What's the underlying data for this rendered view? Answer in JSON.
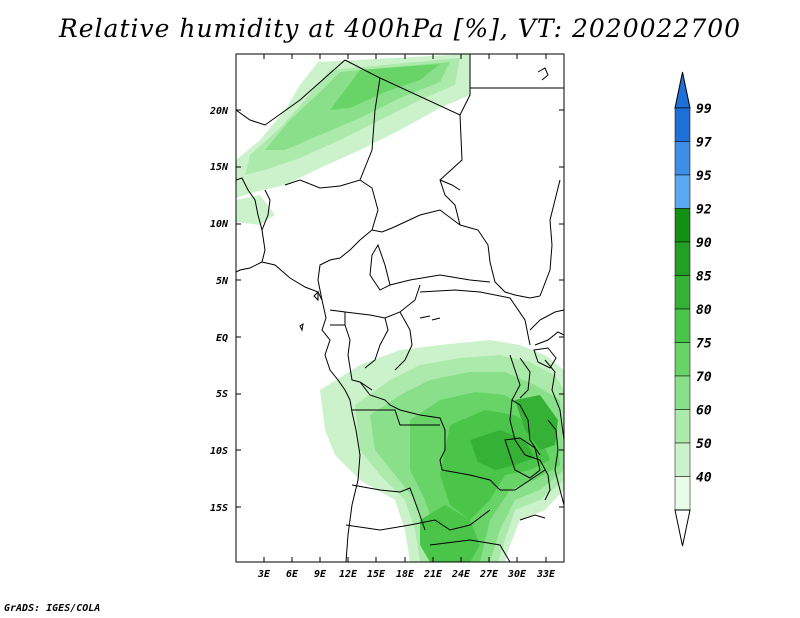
{
  "title": "Relative humidity at 400hPa [%], VT: 2020022700",
  "credit": "GrADS: IGES/COLA",
  "map": {
    "lat_ticks": [
      "20N",
      "15N",
      "10N",
      "5N",
      "EQ",
      "5S",
      "10S",
      "15S"
    ],
    "lon_ticks": [
      "3E",
      "6E",
      "9E",
      "12E",
      "15E",
      "18E",
      "21E",
      "24E",
      "27E",
      "30E",
      "33E"
    ],
    "lat_range": [
      -19.5,
      24.5
    ],
    "lon_range": [
      0.5,
      34
    ]
  },
  "colorbar": {
    "levels": [
      "99",
      "97",
      "95",
      "92",
      "90",
      "85",
      "80",
      "75",
      "70",
      "60",
      "50",
      "40"
    ],
    "colors": [
      "#1e6fd6",
      "#3c8ee6",
      "#5aa9f0",
      "#138f13",
      "#23a023",
      "#35b235",
      "#4ac54a",
      "#68d468",
      "#8ae08a",
      "#aceaac",
      "#ccf2cc",
      "#e8fae8"
    ],
    "top_color": "#1e6fd6",
    "bottom_color": "#ffffff"
  }
}
